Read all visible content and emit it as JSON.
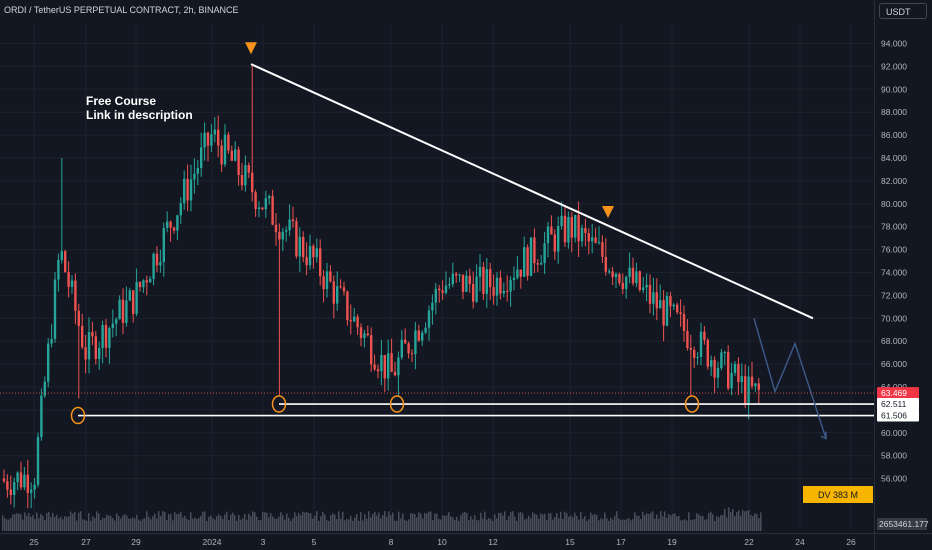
{
  "header": {
    "title": "ORDI / TetherUS PERPETUAL CONTRACT, 2h, BINANCE"
  },
  "currency_button": {
    "label": "USDT"
  },
  "annotation": {
    "line1": "Free Course",
    "line2": "Link in description"
  },
  "badges": {
    "last_price": "63.469",
    "countdown": "01:51:59",
    "level_upper": "62.511",
    "level_lower": "61.506",
    "volume_badge": "DV 383 M",
    "volume_value": "2653461.177"
  },
  "colors": {
    "background": "#131722",
    "up": "#26a69a",
    "down": "#ef5350",
    "marker": "#f7931a",
    "line": "#ffffff",
    "projection": "#3c5a8a",
    "volume_badge_bg": "#f7b500"
  },
  "chart_data": {
    "type": "candlestick",
    "interval": "2h",
    "ylim": [
      55.0,
      95.5
    ],
    "y_ticks": [
      "94.000",
      "92.000",
      "90.000",
      "88.000",
      "86.000",
      "84.000",
      "82.000",
      "80.000",
      "78.000",
      "76.000",
      "74.000",
      "72.000",
      "70.000",
      "68.000",
      "66.000",
      "64.000",
      "62.000",
      "60.000",
      "58.000",
      "56.000"
    ],
    "x_ticks": [
      "25",
      "27",
      "29",
      "2024",
      "3",
      "5",
      "8",
      "10",
      "12",
      "15",
      "17",
      "19",
      "22",
      "24",
      "26"
    ],
    "key_points": [
      {
        "date": "25",
        "close": 56.0
      },
      {
        "date": "26",
        "close": 76.0
      },
      {
        "date": "27",
        "close": 67.0
      },
      {
        "date": "29",
        "close": 72.0
      },
      {
        "date": "2024",
        "high": 92.2,
        "close": 86.0
      },
      {
        "date": "3",
        "close": 80.0
      },
      {
        "date": "5",
        "close": 75.0
      },
      {
        "date": "8",
        "close": 65.0
      },
      {
        "date": "10",
        "close": 73.0
      },
      {
        "date": "12",
        "close": 73.0
      },
      {
        "date": "15",
        "close": 78.0
      },
      {
        "date": "17",
        "high": 77.0,
        "close": 74.0
      },
      {
        "date": "19",
        "close": 70.0
      },
      {
        "date": "22",
        "close": 63.5
      }
    ],
    "trendline": {
      "from": {
        "date": "2024",
        "value": 92.2
      },
      "to": {
        "date": "24",
        "value": 70.0
      }
    },
    "support_levels": [
      62.511,
      61.506
    ],
    "last_price": 63.469
  }
}
